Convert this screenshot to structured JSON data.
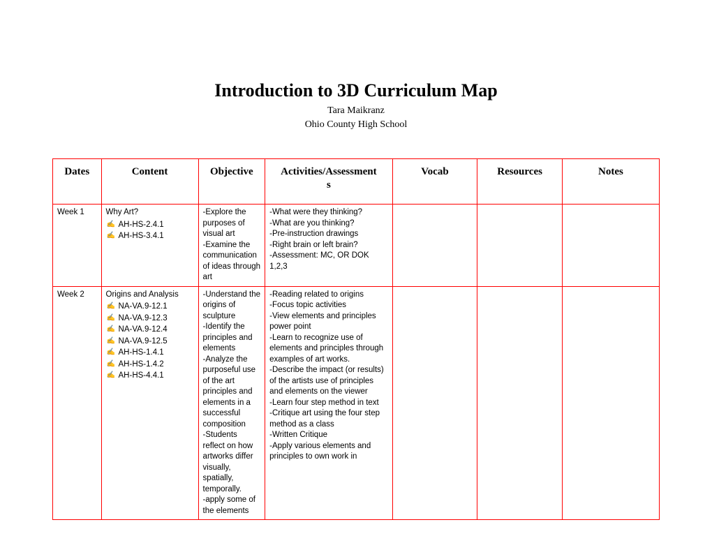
{
  "header": {
    "title": "Introduction to 3D Curriculum Map",
    "author": "Tara Maikranz",
    "school": "Ohio County High School"
  },
  "table": {
    "border_color": "#ff0000",
    "header_font": "Georgia",
    "body_font": "Arial",
    "columns": [
      {
        "label": "Dates",
        "width_pct": 8
      },
      {
        "label": "Content",
        "width_pct": 16
      },
      {
        "label": "Objective",
        "width_pct": 11
      },
      {
        "label": "Activities/Assessment",
        "sublabel": "s",
        "width_pct": 21
      },
      {
        "label": "Vocab",
        "width_pct": 14
      },
      {
        "label": "Resources",
        "width_pct": 14
      },
      {
        "label": "Notes",
        "width_pct": 16
      }
    ],
    "rows": [
      {
        "dates": "Week 1",
        "content_title": "Why Art?",
        "content_items": [
          "AH-HS-2.4.1",
          "AH-HS-3.4.1"
        ],
        "objective": "-Explore the purposes of visual art\n-Examine the communication of ideas through art",
        "activities": "-What were they thinking?\n-What are you thinking?\n-Pre-instruction drawings\n-Right brain or left brain?\n-Assessment: MC, OR DOK 1,2,3",
        "vocab": "",
        "resources": "",
        "notes": ""
      },
      {
        "dates": "Week 2",
        "content_title": "Origins and Analysis",
        "content_items": [
          "NA-VA.9-12.1",
          "NA-VA.9-12.3",
          "NA-VA.9-12.4",
          "NA-VA.9-12.5",
          "AH-HS-1.4.1",
          "AH-HS-1.4.2",
          "AH-HS-4.4.1"
        ],
        "objective": "-Understand the origins of sculpture\n-Identify the principles and elements\n-Analyze the purposeful use of the art principles and elements in a successful composition\n-Students reflect on how artworks differ visually, spatially, temporally.\n-apply some of the elements",
        "activities": "-Reading related to origins\n-Focus topic activities\n-View elements and principles power point\n-Learn to recognize use of elements and principles through examples of art works.\n-Describe the impact (or results) of the artists use of principles and elements on the viewer\n-Learn four step method in text\n-Critique art using the four step method as a class\n-Written Critique\n-Apply various elements and principles to own work in",
        "vocab": "",
        "resources": "",
        "notes": ""
      }
    ]
  }
}
